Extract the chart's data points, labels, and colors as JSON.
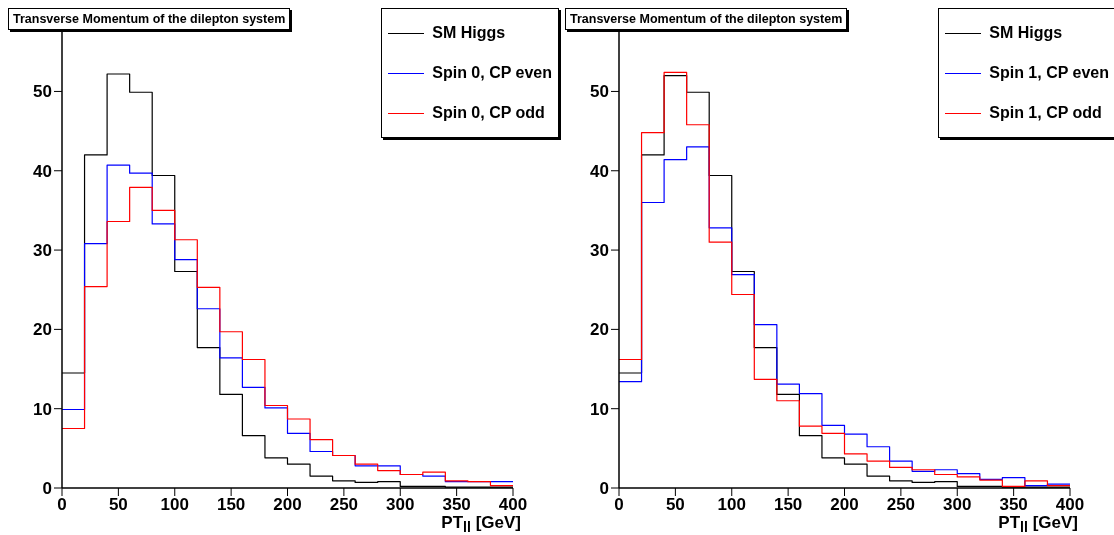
{
  "chart_data": [
    {
      "type": "histogram",
      "title": "Transverse Momentum of the dilepton system",
      "xlabel": "PT$_{ll}$ [GeV]",
      "legend": "top right",
      "grid": false,
      "bins": [
        0,
        20,
        40,
        60,
        80,
        100,
        120,
        140,
        160,
        180,
        200,
        220,
        240,
        260,
        280,
        300,
        320,
        340,
        360,
        380,
        400
      ],
      "xlim": [
        0,
        400
      ],
      "xticks": [
        0,
        50,
        100,
        150,
        200,
        250,
        300,
        350,
        400
      ],
      "ylim": [
        0,
        58
      ],
      "yticks": [
        0,
        10,
        20,
        30,
        40,
        50
      ],
      "series": [
        {
          "name": "SM Higgs",
          "color": "#000000",
          "values": [
            14.5,
            42,
            52.2,
            49.9,
            39.4,
            27.3,
            17.7,
            11.8,
            6.6,
            3.8,
            3.0,
            1.5,
            0.9,
            0.7,
            0.8,
            0.2,
            0.2,
            0.1,
            0.1,
            0.1
          ]
        },
        {
          "name": "Spin 0, CP even",
          "color": "#0000ff",
          "values": [
            9.9,
            30.8,
            40.7,
            39.7,
            33.3,
            28.8,
            22.6,
            16.4,
            12.7,
            10.1,
            6.9,
            4.6,
            4.1,
            2.8,
            2.8,
            1.7,
            1.5,
            0.8,
            0.8,
            0.8
          ]
        },
        {
          "name": "Spin 0, CP odd",
          "color": "#ff0000",
          "values": [
            7.5,
            25.4,
            33.6,
            37.9,
            35.0,
            31.3,
            25.3,
            19.7,
            16.2,
            10.4,
            8.7,
            6.1,
            4.1,
            3.0,
            2.2,
            1.7,
            2.0,
            0.9,
            0.8,
            0.3
          ]
        }
      ]
    },
    {
      "type": "histogram",
      "title": "Transverse Momentum of the dilepton system",
      "xlabel": "PT$_{ll}$ [GeV]",
      "legend": "top right",
      "grid": false,
      "bins": [
        0,
        20,
        40,
        60,
        80,
        100,
        120,
        140,
        160,
        180,
        200,
        220,
        240,
        260,
        280,
        300,
        320,
        340,
        360,
        380,
        400
      ],
      "xlim": [
        0,
        400
      ],
      "xticks": [
        0,
        50,
        100,
        150,
        200,
        250,
        300,
        350,
        400
      ],
      "ylim": [
        0,
        58
      ],
      "yticks": [
        0,
        10,
        20,
        30,
        40,
        50
      ],
      "series": [
        {
          "name": "SM Higgs",
          "color": "#000000",
          "values": [
            14.5,
            42,
            52.0,
            49.9,
            39.4,
            27.3,
            17.7,
            11.8,
            6.6,
            3.8,
            3.0,
            1.5,
            0.9,
            0.7,
            0.8,
            0.2,
            0.2,
            0.1,
            0.1,
            0.1
          ]
        },
        {
          "name": "Spin 1, CP even",
          "color": "#0000ff",
          "values": [
            13.4,
            36,
            41.4,
            43,
            32.8,
            26.9,
            20.6,
            13.1,
            11.9,
            7.9,
            6.8,
            5.2,
            3.4,
            2.1,
            2.3,
            1.8,
            1.1,
            1.3,
            0.3,
            0.5
          ]
        },
        {
          "name": "Spin 1, CP odd",
          "color": "#ff0000",
          "values": [
            16.2,
            44.8,
            52.4,
            45.8,
            31.0,
            24.4,
            13.7,
            11.0,
            7.8,
            6.9,
            4.3,
            3.4,
            2.6,
            2.3,
            1.7,
            1.4,
            1.0,
            0.2,
            0.9,
            0.3
          ]
        }
      ]
    }
  ]
}
